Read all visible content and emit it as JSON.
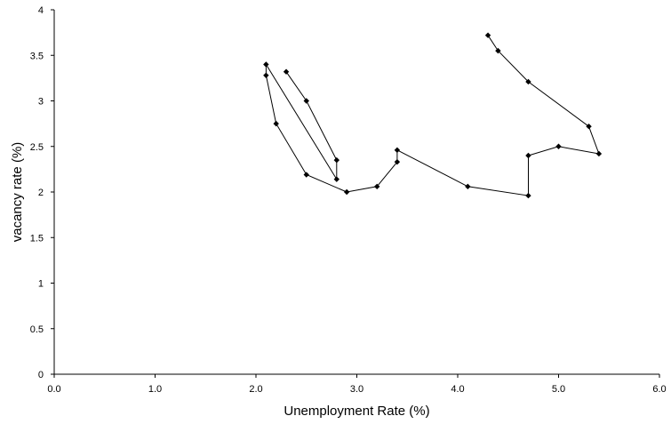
{
  "chart_data": {
    "type": "scatter",
    "title": "",
    "xlabel": "Unemployment Rate (%)",
    "ylabel": "vacancy rate (%)",
    "xlim": [
      0,
      6
    ],
    "ylim": [
      0,
      4
    ],
    "x_ticks": [
      "0.0",
      "1.0",
      "2.0",
      "3.0",
      "4.0",
      "5.0",
      "6.0"
    ],
    "y_ticks": [
      "0",
      "0.5",
      "1",
      "1.5",
      "2",
      "2.5",
      "3",
      "3.5",
      "4"
    ],
    "grid": false,
    "legend": "none",
    "marker": "diamond",
    "color": "#000000",
    "series": [
      {
        "x": [
          2.3,
          2.5,
          2.8,
          2.8,
          2.1,
          2.1,
          2.2,
          2.5,
          2.9,
          3.2,
          3.4,
          3.4,
          4.1,
          4.7,
          4.7,
          5.0,
          5.4,
          5.3,
          4.7,
          4.4,
          4.3
        ],
        "y": [
          3.32,
          3.0,
          2.35,
          2.14,
          3.4,
          3.28,
          2.75,
          2.19,
          2.0,
          2.06,
          2.33,
          2.46,
          2.06,
          1.96,
          2.4,
          2.5,
          2.42,
          2.72,
          3.21,
          3.55,
          3.72
        ]
      }
    ]
  }
}
